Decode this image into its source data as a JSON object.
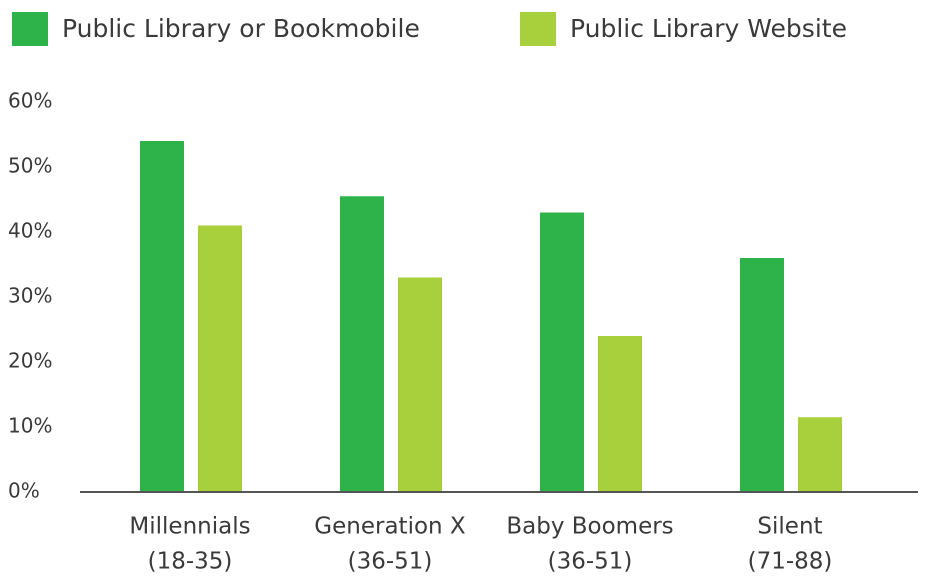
{
  "chart_data": {
    "type": "bar",
    "categories": [
      [
        "Millennials",
        "(18-35)"
      ],
      [
        "Generation X",
        "(36-51)"
      ],
      [
        "Baby Boomers",
        "(36-51)"
      ],
      [
        "Silent",
        "(71-88)"
      ]
    ],
    "series": [
      {
        "name": "Public Library or Bookmobile",
        "color": "#2db34a",
        "values": [
          54,
          45.5,
          43,
          36
        ]
      },
      {
        "name": "Public Library Website",
        "color": "#a8cf3c",
        "values": [
          41,
          33,
          24,
          11.5
        ]
      }
    ],
    "ylim": [
      0,
      60
    ],
    "yticks": [
      {
        "value": 0,
        "label": "0%"
      },
      {
        "value": 10,
        "label": "10%"
      },
      {
        "value": 20,
        "label": "20%"
      },
      {
        "value": 30,
        "label": "30%"
      },
      {
        "value": 40,
        "label": "40%"
      },
      {
        "value": 50,
        "label": "50%"
      },
      {
        "value": 60,
        "label": "60%"
      }
    ],
    "legend": "top-left"
  }
}
